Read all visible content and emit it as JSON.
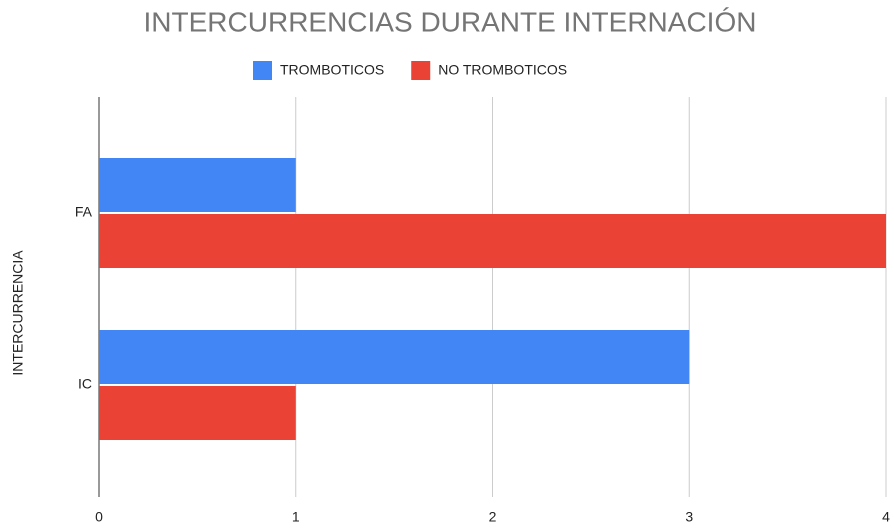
{
  "chart_data": {
    "type": "bar",
    "orientation": "horizontal",
    "title": "INTERCURRENCIAS DURANTE INTERNACIÓN",
    "y_label": "INTERCURRENCIA",
    "categories": [
      "FA",
      "IC"
    ],
    "series": [
      {
        "name": "TROMBOTICOS",
        "color": "#4285f4",
        "values": [
          1,
          3
        ]
      },
      {
        "name": "NO TROMBOTICOS",
        "color": "#ea4335",
        "values": [
          4,
          1
        ]
      }
    ],
    "xlim": [
      0,
      4
    ],
    "xticks": [
      0,
      1,
      2,
      3,
      4
    ],
    "grid": true,
    "legend": "top"
  }
}
